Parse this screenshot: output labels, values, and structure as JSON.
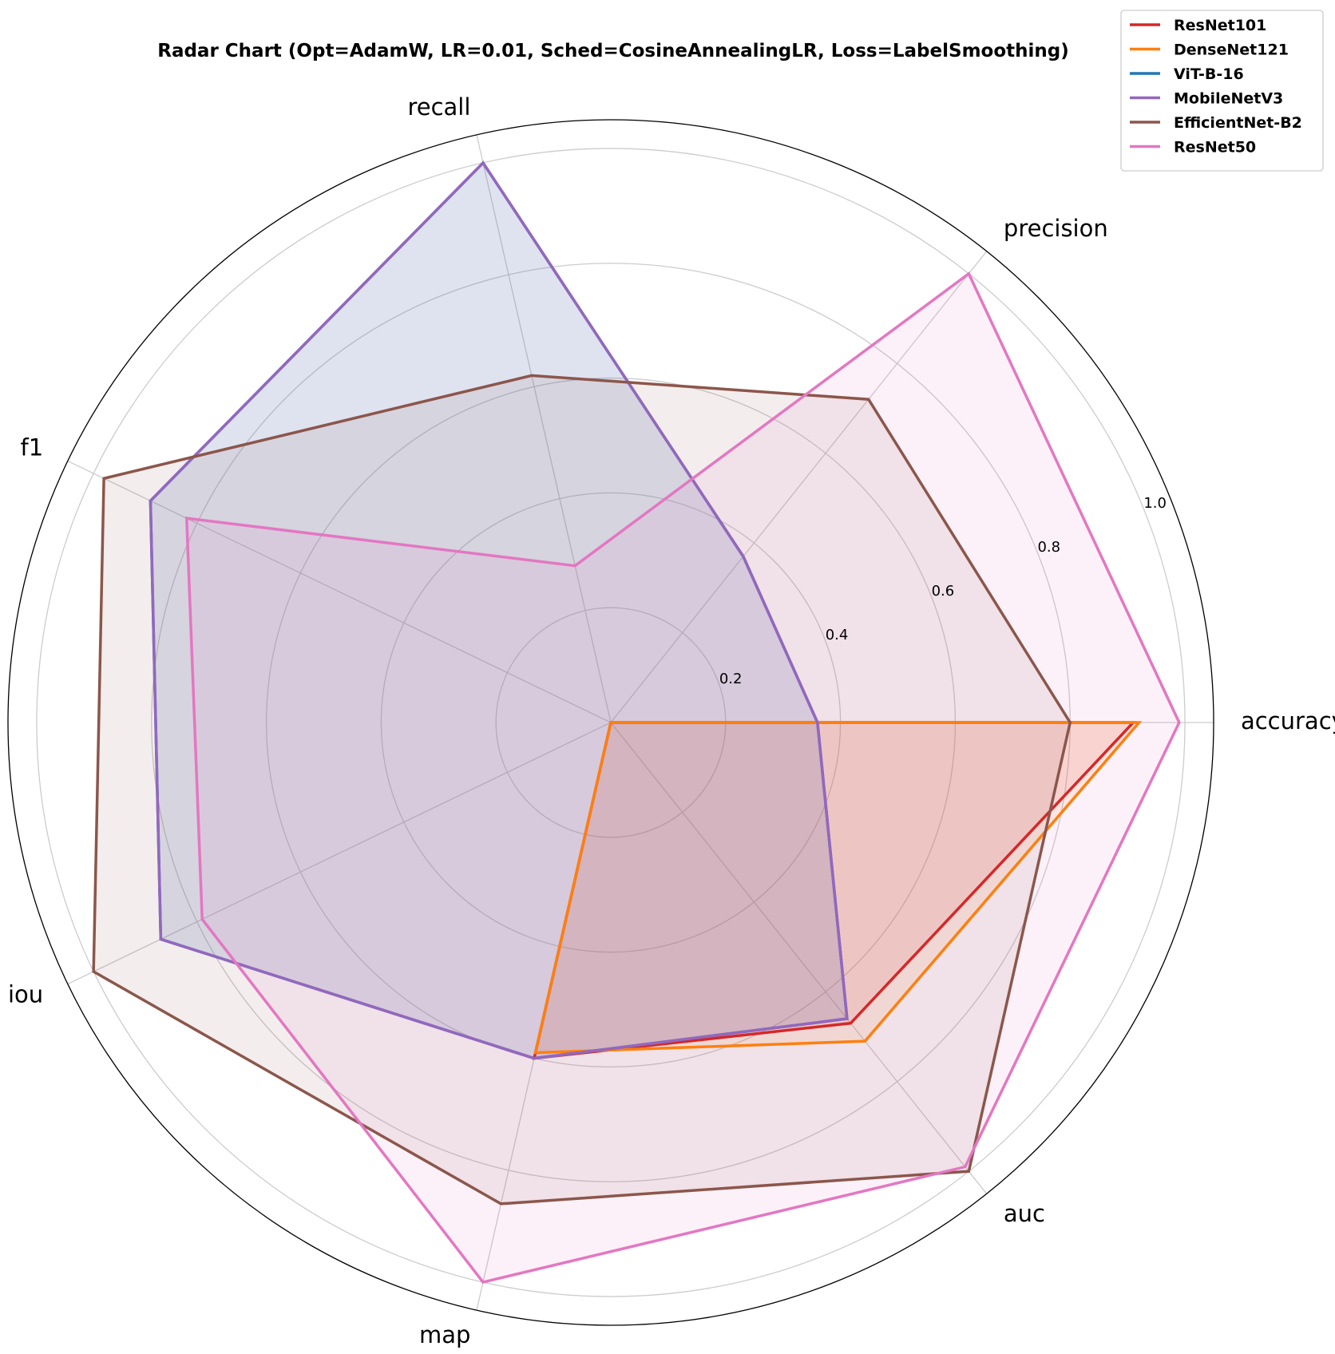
{
  "chart_data": {
    "type": "radar",
    "title": "Radar Chart (Opt=AdamW, LR=0.01, Sched=CosineAnnealingLR, Loss=LabelSmoothing)",
    "axes": [
      "accuracy",
      "precision",
      "recall",
      "f1",
      "iou",
      "map",
      "auc"
    ],
    "rlim": [
      0,
      1.05
    ],
    "r_ticks": [
      0.2,
      0.4,
      0.6,
      0.8,
      1.0
    ],
    "r_tick_labels": [
      "0.2",
      "0.4",
      "0.6",
      "0.8",
      "1.0"
    ],
    "grid": true,
    "legend_position": "top-right",
    "series": [
      {
        "name": "ResNet101",
        "color": "#d62728",
        "values": [
          0.91,
          0.0,
          0.0,
          0.0,
          0.0,
          0.6,
          0.67
        ]
      },
      {
        "name": "DenseNet121",
        "color": "#ff7f0e",
        "values": [
          0.92,
          0.0,
          0.0,
          0.0,
          0.0,
          0.59,
          0.71
        ]
      },
      {
        "name": "ViT-B-16",
        "color": "#1f77b4",
        "values": [
          0.36,
          0.37,
          1.0,
          0.89,
          0.87,
          0.6,
          0.66
        ]
      },
      {
        "name": "MobileNetV3",
        "color": "#9467bd",
        "values": [
          0.36,
          0.37,
          1.0,
          0.89,
          0.87,
          0.6,
          0.66
        ]
      },
      {
        "name": "EfficientNet-B2",
        "color": "#8c564b",
        "values": [
          0.8,
          0.72,
          0.62,
          0.98,
          1.0,
          0.86,
          1.0
        ]
      },
      {
        "name": "ResNet50",
        "color": "#e377c2",
        "values": [
          0.99,
          1.0,
          0.28,
          0.82,
          0.79,
          1.0,
          0.99
        ]
      }
    ]
  }
}
